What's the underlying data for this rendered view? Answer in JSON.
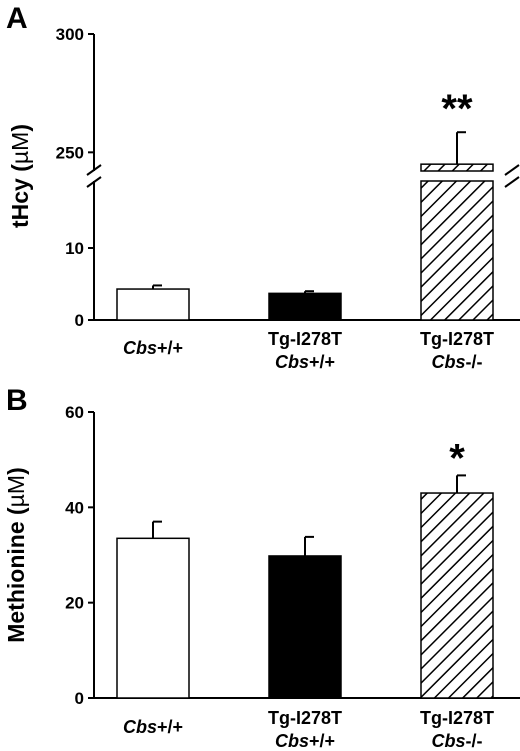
{
  "chart_data": [
    {
      "panel": "A",
      "type": "bar",
      "ylabel_main": "tHcy (",
      "ylabel_unit": "µM",
      "ylabel_end": ")",
      "axis_break": true,
      "lower_range": [
        0,
        20
      ],
      "upper_range": [
        240,
        300
      ],
      "yticks_lower": [
        0,
        10
      ],
      "yticks_upper": [
        250,
        300
      ],
      "categories": [
        {
          "line1_italic": "Cbs",
          "line1_rest": "+/+",
          "line2_italic": "",
          "line2_rest": "",
          "fill": "white"
        },
        {
          "line1_italic": "",
          "line1_rest": "Tg-I278T",
          "line2_italic": "Cbs",
          "line2_rest": "+/+",
          "fill": "black"
        },
        {
          "line1_italic": "",
          "line1_rest": "Tg-I278T",
          "line2_italic": "Cbs",
          "line2_rest": "-/-",
          "fill": "hatch"
        }
      ],
      "values": [
        4.3,
        3.7,
        245
      ],
      "errors": [
        0.5,
        0.3,
        13.5
      ],
      "significance": [
        "",
        "",
        "**"
      ]
    },
    {
      "panel": "B",
      "type": "bar",
      "ylabel_main": "Methionine (",
      "ylabel_unit": "µM",
      "ylabel_end": ")",
      "ylim": [
        0,
        60
      ],
      "yticks": [
        0,
        20,
        40,
        60
      ],
      "categories": [
        {
          "line1_italic": "Cbs",
          "line1_rest": "+/+",
          "line2_italic": "",
          "line2_rest": "",
          "fill": "white"
        },
        {
          "line1_italic": "",
          "line1_rest": "Tg-I278T",
          "line2_italic": "Cbs",
          "line2_rest": "+/+",
          "fill": "black"
        },
        {
          "line1_italic": "",
          "line1_rest": "Tg-I278T",
          "line2_italic": "Cbs",
          "line2_rest": "-/-",
          "fill": "hatch"
        }
      ],
      "values": [
        33.5,
        29.8,
        43.0
      ],
      "errors": [
        3.5,
        4.0,
        3.7
      ],
      "significance": [
        "",
        "",
        "*"
      ]
    }
  ]
}
